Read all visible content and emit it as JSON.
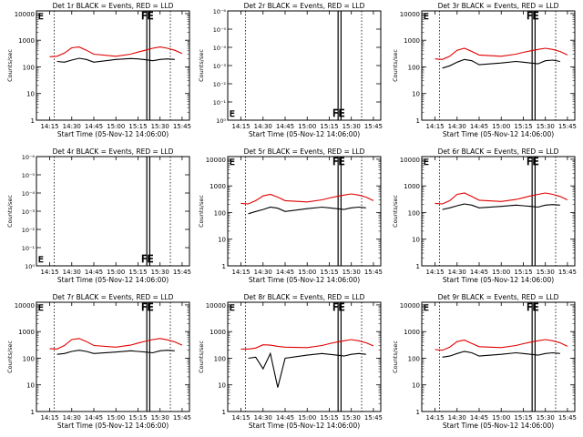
{
  "figure": {
    "xlabel": "Start Time (05-Nov-12 14:06:00)",
    "ylabel": "Counts/sec",
    "xtick_labels": [
      "14:15",
      "14:30",
      "14:45",
      "15:00",
      "15:15",
      "15:30",
      "15:45"
    ],
    "line_colors": {
      "events": "#000000",
      "lld": "#e00000"
    }
  },
  "chart_data": [
    {
      "type": "line",
      "title": "Det 1r BLACK = Events, RED = LLD",
      "scale": "log",
      "ytick_labels": [
        "1",
        "10",
        "100",
        "1000",
        "10000"
      ],
      "x": [
        "14:15",
        "14:20",
        "14:25",
        "14:30",
        "14:35",
        "14:40",
        "14:45",
        "15:00",
        "15:10",
        "15:15",
        "15:20",
        "15:25",
        "15:30",
        "15:35",
        "15:40",
        "15:45"
      ],
      "series": [
        {
          "name": "Events",
          "color": "#000000",
          "values": [
            null,
            160,
            150,
            180,
            210,
            190,
            150,
            190,
            205,
            200,
            185,
            170,
            190,
            200,
            190,
            null
          ]
        },
        {
          "name": "LLD",
          "color": "#e00000",
          "values": [
            240,
            250,
            330,
            520,
            560,
            420,
            300,
            250,
            300,
            360,
            420,
            500,
            560,
            500,
            420,
            320
          ]
        }
      ],
      "annotation": "FE"
    },
    {
      "type": "line",
      "title": "Det 2r BLACK = Events, RED = LLD",
      "scale": "log-empty",
      "ytick_labels": [
        "10⁰",
        "10⁻¹",
        "10⁻²",
        "10⁻³",
        "10⁻⁴",
        "10⁻⁵",
        "10⁻⁶"
      ],
      "series": [],
      "annotation": "FE"
    },
    {
      "type": "line",
      "title": "Det 3r BLACK = Events, RED = LLD",
      "scale": "log",
      "ytick_labels": [
        "1",
        "10",
        "100",
        "1000",
        "10000"
      ],
      "x": [
        "14:15",
        "14:20",
        "14:25",
        "14:30",
        "14:35",
        "14:40",
        "14:45",
        "15:00",
        "15:10",
        "15:15",
        "15:20",
        "15:25",
        "15:30",
        "15:35",
        "15:40",
        "15:45"
      ],
      "series": [
        {
          "name": "Events",
          "color": "#000000",
          "values": [
            null,
            90,
            110,
            150,
            190,
            170,
            120,
            140,
            160,
            150,
            140,
            130,
            170,
            180,
            160,
            null
          ]
        },
        {
          "name": "LLD",
          "color": "#e00000",
          "values": [
            200,
            190,
            250,
            420,
            500,
            380,
            280,
            250,
            300,
            350,
            400,
            450,
            500,
            450,
            380,
            280
          ]
        }
      ],
      "annotation": "FE"
    },
    {
      "type": "line",
      "title": "Det 4r BLACK = Events, RED = LLD",
      "scale": "log-empty",
      "ytick_labels": [
        "10⁰",
        "10⁻¹",
        "10⁻²",
        "10⁻³",
        "10⁻⁴",
        "10⁻⁵",
        "10⁻⁶"
      ],
      "series": [],
      "annotation": "FE"
    },
    {
      "type": "line",
      "title": "Det 5r BLACK = Events, RED = LLD",
      "scale": "log",
      "ytick_labels": [
        "1",
        "10",
        "100",
        "1000",
        "10000"
      ],
      "x": [
        "14:15",
        "14:20",
        "14:25",
        "14:30",
        "14:35",
        "14:40",
        "14:45",
        "15:00",
        "15:10",
        "15:15",
        "15:20",
        "15:25",
        "15:30",
        "15:35",
        "15:40",
        "15:45"
      ],
      "series": [
        {
          "name": "Events",
          "color": "#000000",
          "values": [
            null,
            90,
            110,
            130,
            160,
            145,
            110,
            140,
            160,
            150,
            140,
            130,
            150,
            160,
            150,
            null
          ]
        },
        {
          "name": "LLD",
          "color": "#e00000",
          "values": [
            220,
            210,
            280,
            420,
            480,
            380,
            280,
            250,
            300,
            350,
            400,
            450,
            500,
            450,
            380,
            280
          ]
        }
      ],
      "annotation": "FE"
    },
    {
      "type": "line",
      "title": "Det 6r BLACK = Events, RED = LLD",
      "scale": "log",
      "ytick_labels": [
        "1",
        "10",
        "100",
        "1000",
        "10000"
      ],
      "x": [
        "14:15",
        "14:20",
        "14:25",
        "14:30",
        "14:35",
        "14:40",
        "14:45",
        "15:00",
        "15:10",
        "15:15",
        "15:20",
        "15:25",
        "15:30",
        "15:35",
        "15:40",
        "15:45"
      ],
      "series": [
        {
          "name": "Events",
          "color": "#000000",
          "values": [
            null,
            130,
            150,
            180,
            210,
            190,
            150,
            170,
            190,
            180,
            170,
            160,
            190,
            200,
            190,
            null
          ]
        },
        {
          "name": "LLD",
          "color": "#e00000",
          "values": [
            220,
            210,
            280,
            480,
            540,
            400,
            290,
            260,
            310,
            360,
            420,
            480,
            540,
            480,
            400,
            300
          ]
        }
      ],
      "annotation": "FE"
    },
    {
      "type": "line",
      "title": "Det 7r BLACK = Events, RED = LLD",
      "scale": "log",
      "ytick_labels": [
        "1",
        "10",
        "100",
        "1000",
        "10000"
      ],
      "x": [
        "14:15",
        "14:20",
        "14:25",
        "14:30",
        "14:35",
        "14:40",
        "14:45",
        "15:00",
        "15:10",
        "15:15",
        "15:20",
        "15:25",
        "15:30",
        "15:35",
        "15:40",
        "15:45"
      ],
      "series": [
        {
          "name": "Events",
          "color": "#000000",
          "values": [
            null,
            140,
            150,
            180,
            200,
            180,
            150,
            170,
            190,
            180,
            170,
            160,
            190,
            200,
            190,
            null
          ]
        },
        {
          "name": "LLD",
          "color": "#e00000",
          "values": [
            230,
            220,
            300,
            500,
            550,
            420,
            300,
            260,
            310,
            370,
            430,
            500,
            550,
            490,
            410,
            310
          ]
        }
      ],
      "annotation": "FE"
    },
    {
      "type": "line",
      "title": "Det 8r BLACK = Events, RED = LLD",
      "scale": "log",
      "ytick_labels": [
        "1",
        "10",
        "100",
        "1000",
        "10000"
      ],
      "x": [
        "14:15",
        "14:20",
        "14:25",
        "14:30",
        "14:35",
        "14:40",
        "14:45",
        "15:00",
        "15:10",
        "15:15",
        "15:20",
        "15:25",
        "15:30",
        "15:35",
        "15:40",
        "15:45"
      ],
      "series": [
        {
          "name": "Events",
          "color": "#000000",
          "values": [
            null,
            100,
            110,
            40,
            150,
            8,
            100,
            130,
            150,
            140,
            130,
            120,
            140,
            150,
            140,
            null
          ]
        },
        {
          "name": "LLD",
          "color": "#e00000",
          "values": [
            220,
            220,
            240,
            320,
            310,
            280,
            260,
            250,
            300,
            350,
            400,
            450,
            500,
            450,
            380,
            290
          ]
        }
      ],
      "annotation": "FE"
    },
    {
      "type": "line",
      "title": "Det 9r BLACK = Events, RED = LLD",
      "scale": "log",
      "ytick_labels": [
        "1",
        "10",
        "100",
        "1000",
        "10000"
      ],
      "x": [
        "14:15",
        "14:20",
        "14:25",
        "14:30",
        "14:35",
        "14:40",
        "14:45",
        "15:00",
        "15:10",
        "15:15",
        "15:20",
        "15:25",
        "15:30",
        "15:35",
        "15:40",
        "15:45"
      ],
      "series": [
        {
          "name": "Events",
          "color": "#000000",
          "values": [
            null,
            110,
            120,
            150,
            180,
            160,
            120,
            140,
            160,
            150,
            140,
            130,
            150,
            160,
            150,
            null
          ]
        },
        {
          "name": "LLD",
          "color": "#e00000",
          "values": [
            210,
            200,
            260,
            420,
            480,
            360,
            270,
            250,
            300,
            350,
            400,
            450,
            500,
            450,
            380,
            280
          ]
        }
      ],
      "annotation": "FE"
    }
  ]
}
